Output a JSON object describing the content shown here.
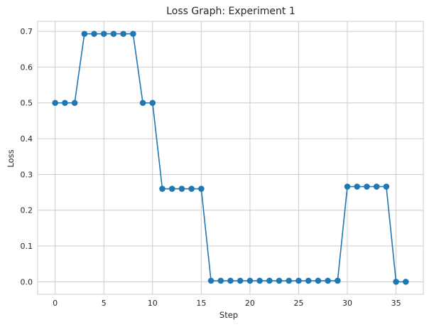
{
  "chart_data": {
    "type": "line",
    "title": "Loss Graph: Experiment 1",
    "xlabel": "Step",
    "ylabel": "Loss",
    "xlim": [
      -1.8,
      37.8
    ],
    "ylim": [
      -0.035,
      0.728
    ],
    "xticks": [
      0,
      5,
      10,
      15,
      20,
      25,
      30,
      35
    ],
    "yticks": [
      0.0,
      0.1,
      0.2,
      0.3,
      0.4,
      0.5,
      0.6,
      0.7
    ],
    "ytick_labels": [
      "0.0",
      "0.1",
      "0.2",
      "0.3",
      "0.4",
      "0.5",
      "0.6",
      "0.7"
    ],
    "grid": true,
    "series": [
      {
        "color": "#1f77b4",
        "marker": "circle",
        "x": [
          0,
          1,
          2,
          3,
          4,
          5,
          6,
          7,
          8,
          9,
          10,
          11,
          12,
          13,
          14,
          15,
          16,
          17,
          18,
          19,
          20,
          21,
          22,
          23,
          24,
          25,
          26,
          27,
          28,
          29,
          30,
          31,
          32,
          33,
          34,
          35,
          36
        ],
        "y": [
          0.5,
          0.5,
          0.5,
          0.693,
          0.693,
          0.693,
          0.693,
          0.693,
          0.693,
          0.5,
          0.5,
          0.26,
          0.26,
          0.26,
          0.26,
          0.26,
          0.003,
          0.003,
          0.003,
          0.003,
          0.003,
          0.003,
          0.003,
          0.003,
          0.003,
          0.003,
          0.003,
          0.003,
          0.003,
          0.003,
          0.266,
          0.266,
          0.266,
          0.266,
          0.266,
          0.0,
          0.0
        ]
      }
    ]
  }
}
